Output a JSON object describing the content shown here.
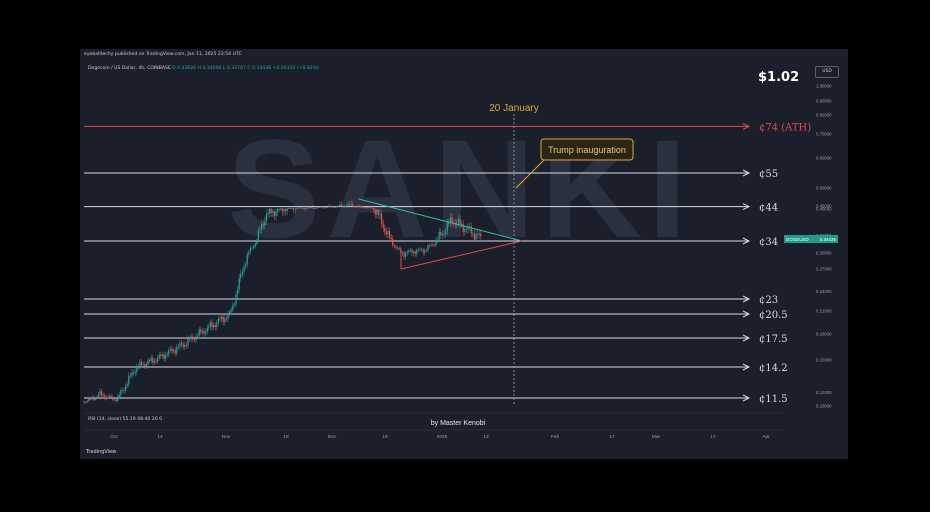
{
  "header": {
    "publisher": "eyeballtechy published on TradingView.com, Jan 11, 2025 23:54 UTC",
    "symbol": "Dogecoin / US Dollar, 4h, COINBASE",
    "ohlc": "O 0.33620  H 0.34600  L 0.33767  C 0.34436  +0.00310 (+0.92%)",
    "currency": "USD",
    "rsi_legend": "RSI (14, close)  55.19  48.40  20  0",
    "tradingview": "TradingView"
  },
  "annotations": {
    "big_price": "$1.02",
    "watermark": "SANKI",
    "date_label": "20 January",
    "callout": "Trump inauguration",
    "author": "by Master Kenobi",
    "current_price_tag": "DOGEUSD",
    "current_price_value": "0.34436"
  },
  "colors": {
    "background": "#1b1f2b",
    "resistance_red": "#e04a4a",
    "level_white": "#d9dbe0",
    "triangle_upper": "#31c2a9",
    "triangle_lower": "#e04a4a",
    "callout_orange": "#e2a435",
    "candle_up": "#26a69a",
    "candle_down": "#ef5350"
  },
  "chart_data": {
    "type": "line",
    "title": "Dogecoin / US Dollar, 4h, COINBASE",
    "xlabel": "",
    "ylabel": "",
    "x_tick_labels": [
      "Oct",
      "14",
      "Nov",
      "18",
      "Dec",
      "16",
      "2025",
      "13",
      "Feb",
      "17",
      "Mar",
      "17",
      "Apr"
    ],
    "y_tick_labels": [
      "1.00000",
      "0.90000",
      "0.80000",
      "0.70000",
      "0.60000",
      "0.50000",
      "0.45000",
      "0.40000",
      "0.35000",
      "0.30000",
      "0.27000",
      "0.24000",
      "0.21000",
      "0.18000",
      "0.15000",
      "0.12000",
      "0.10000"
    ],
    "ylim": [
      0.1,
      1.05
    ],
    "price_series": {
      "name": "DOGEUSD",
      "x": [
        "Sep 30",
        "Oct 7",
        "Oct 14",
        "Oct 21",
        "Oct 28",
        "Nov 4",
        "Nov 11",
        "Nov 15",
        "Nov 22",
        "Nov 28",
        "Dec 5",
        "Dec 12",
        "Dec 19",
        "Dec 26",
        "Jan 2",
        "Jan 11"
      ],
      "values": [
        0.108,
        0.118,
        0.112,
        0.142,
        0.152,
        0.168,
        0.205,
        0.39,
        0.41,
        0.42,
        0.45,
        0.42,
        0.3,
        0.31,
        0.38,
        0.344
      ]
    },
    "horizontal_levels": [
      {
        "label": "¢74 (ATH)",
        "price": 0.74,
        "color": "#e04a4a"
      },
      {
        "label": "¢55",
        "price": 0.55,
        "color": "#d9dbe0"
      },
      {
        "label": "¢44",
        "price": 0.44,
        "color": "#d9dbe0"
      },
      {
        "label": "¢34",
        "price": 0.34,
        "color": "#d9dbe0"
      },
      {
        "label": "¢23",
        "price": 0.23,
        "color": "#d9dbe0"
      },
      {
        "label": "¢20.5",
        "price": 0.205,
        "color": "#d9dbe0"
      },
      {
        "label": "¢17.5",
        "price": 0.175,
        "color": "#d9dbe0"
      },
      {
        "label": "¢14.2",
        "price": 0.142,
        "color": "#d9dbe0"
      },
      {
        "label": "¢11.5",
        "price": 0.115,
        "color": "#d9dbe0"
      }
    ],
    "triangle": {
      "upper": {
        "from": [
          "Dec 8",
          0.47
        ],
        "to": [
          "Jan 20",
          0.34
        ]
      },
      "lower": {
        "from": [
          "Dec 19",
          0.27
        ],
        "to": [
          "Jan 20",
          0.34
        ]
      }
    },
    "vertical_marker": {
      "date": "Jan 20",
      "label": "20 January"
    },
    "grid": false,
    "legend": "none"
  }
}
